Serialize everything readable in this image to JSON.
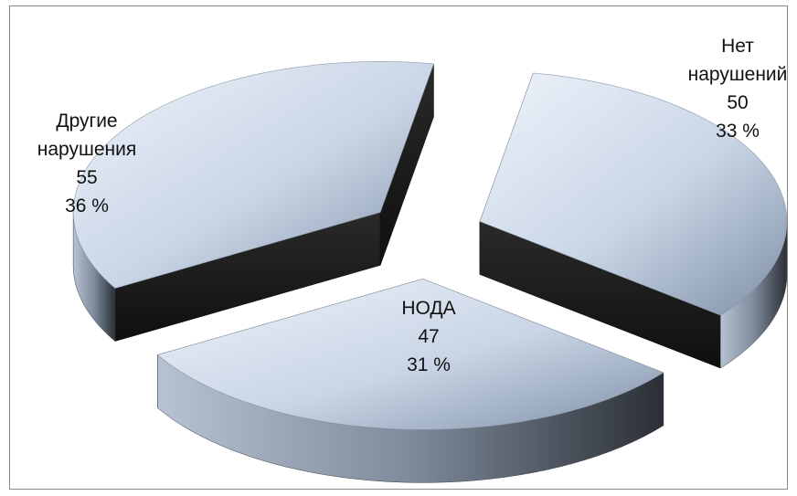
{
  "chart_data": {
    "type": "pie",
    "title": "",
    "slices": [
      {
        "label": "Нет нарушений",
        "label_lines": [
          "Нет",
          "нарушений"
        ],
        "value": 50,
        "percent": "33 %"
      },
      {
        "label": "НОДА",
        "label_lines": [
          "НОДА"
        ],
        "value": 47,
        "percent": "31 %"
      },
      {
        "label": "Другие нарушения",
        "label_lines": [
          "Другие",
          "нарушения"
        ],
        "value": 55,
        "percent": "36 %"
      }
    ],
    "exploded": true,
    "three_d": true,
    "legend": "none",
    "colors": {
      "top_light": "#e3ebf6",
      "top_dark": "#7d8ea3",
      "side_light": "#a9b5c6",
      "side_dark": "#1c1c1c"
    }
  }
}
